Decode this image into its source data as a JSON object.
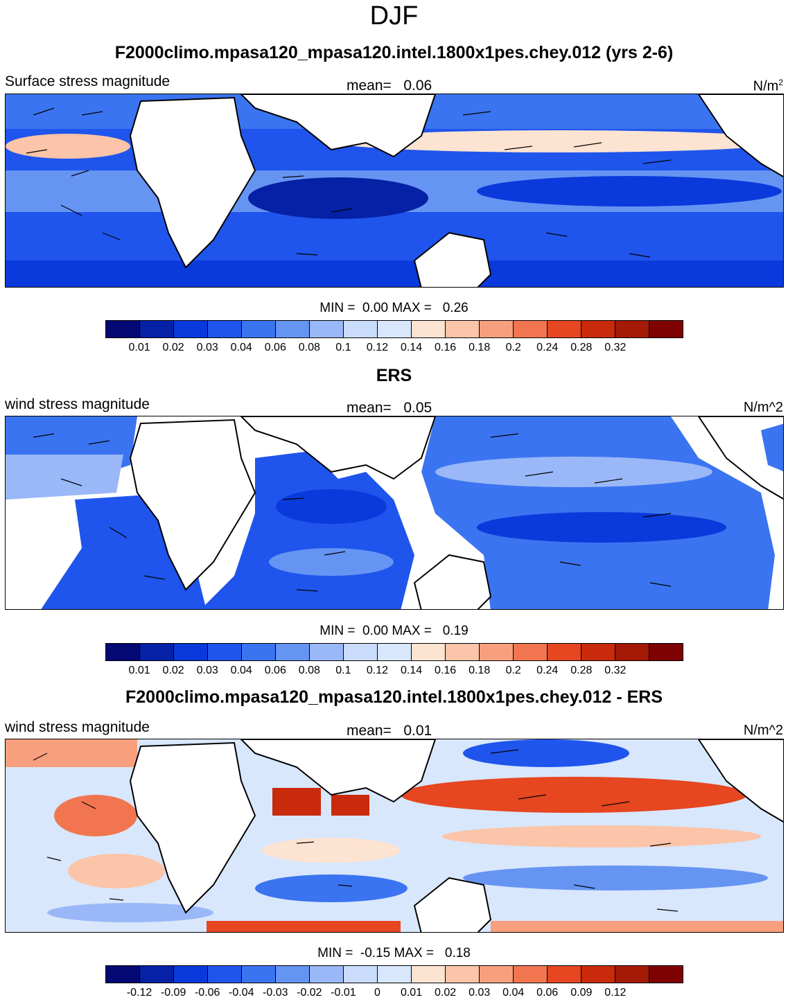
{
  "title": "DJF",
  "panels": [
    {
      "heading": "F2000climo.mpasa120_mpasa120.intel.1800x1pes.chey.012 (yrs 2-6)",
      "variable_label": "Surface stress magnitude",
      "mean_label": "mean=",
      "mean_value": "0.06",
      "units_base": "N/m",
      "units_sup": "2",
      "units_text": "",
      "min_label": "MIN =",
      "min_value": "0.00",
      "max_label": "MAX =",
      "max_value": "0.26",
      "colorbar": {
        "colors": [
          "#030873",
          "#0521a6",
          "#0a3adb",
          "#1f55ec",
          "#3b74f0",
          "#6694f3",
          "#9ab8f7",
          "#c9dcfb",
          "#d8e7fc",
          "#fde3d1",
          "#fcc4a8",
          "#f8a07e",
          "#f17650",
          "#e64620",
          "#c82a0b",
          "#a51a06",
          "#7f0202"
        ],
        "ticks": [
          "0.01",
          "0.02",
          "0.03",
          "0.04",
          "0.06",
          "0.08",
          "0.1",
          "0.12",
          "0.14",
          "0.16",
          "0.18",
          "0.2",
          "0.24",
          "0.28",
          "0.32"
        ]
      }
    },
    {
      "heading": "ERS",
      "variable_label": "wind stress magnitude",
      "mean_label": "mean=",
      "mean_value": "0.05",
      "units_base": "",
      "units_sup": "",
      "units_text": "N/m^2",
      "min_label": "MIN =",
      "min_value": "0.00",
      "max_label": "MAX =",
      "max_value": "0.19",
      "colorbar": {
        "colors": [
          "#030873",
          "#0521a6",
          "#0a3adb",
          "#1f55ec",
          "#3b74f0",
          "#6694f3",
          "#9ab8f7",
          "#c9dcfb",
          "#d8e7fc",
          "#fde3d1",
          "#fcc4a8",
          "#f8a07e",
          "#f17650",
          "#e64620",
          "#c82a0b",
          "#a51a06",
          "#7f0202"
        ],
        "ticks": [
          "0.01",
          "0.02",
          "0.03",
          "0.04",
          "0.06",
          "0.08",
          "0.1",
          "0.12",
          "0.14",
          "0.16",
          "0.18",
          "0.2",
          "0.24",
          "0.28",
          "0.32"
        ]
      }
    },
    {
      "heading": "F2000climo.mpasa120_mpasa120.intel.1800x1pes.chey.012 - ERS",
      "variable_label": "wind stress magnitude",
      "mean_label": "mean=",
      "mean_value": "0.01",
      "units_base": "",
      "units_sup": "",
      "units_text": "N/m^2",
      "min_label": "MIN =",
      "min_value": "-0.15",
      "max_label": "MAX =",
      "max_value": "0.18",
      "colorbar": {
        "colors": [
          "#030873",
          "#0521a6",
          "#0a3adb",
          "#1f55ec",
          "#3b74f0",
          "#6694f3",
          "#9ab8f7",
          "#c9dcfb",
          "#d8e7fc",
          "#fde3d1",
          "#fcc4a8",
          "#f8a07e",
          "#f17650",
          "#e64620",
          "#c82a0b",
          "#a51a06",
          "#7f0202"
        ],
        "ticks": [
          "-0.12",
          "-0.09",
          "-0.06",
          "-0.04",
          "-0.03",
          "-0.02",
          "-0.01",
          "0",
          "0.01",
          "0.02",
          "0.03",
          "0.04",
          "0.06",
          "0.09",
          "0.12"
        ]
      }
    }
  ]
}
